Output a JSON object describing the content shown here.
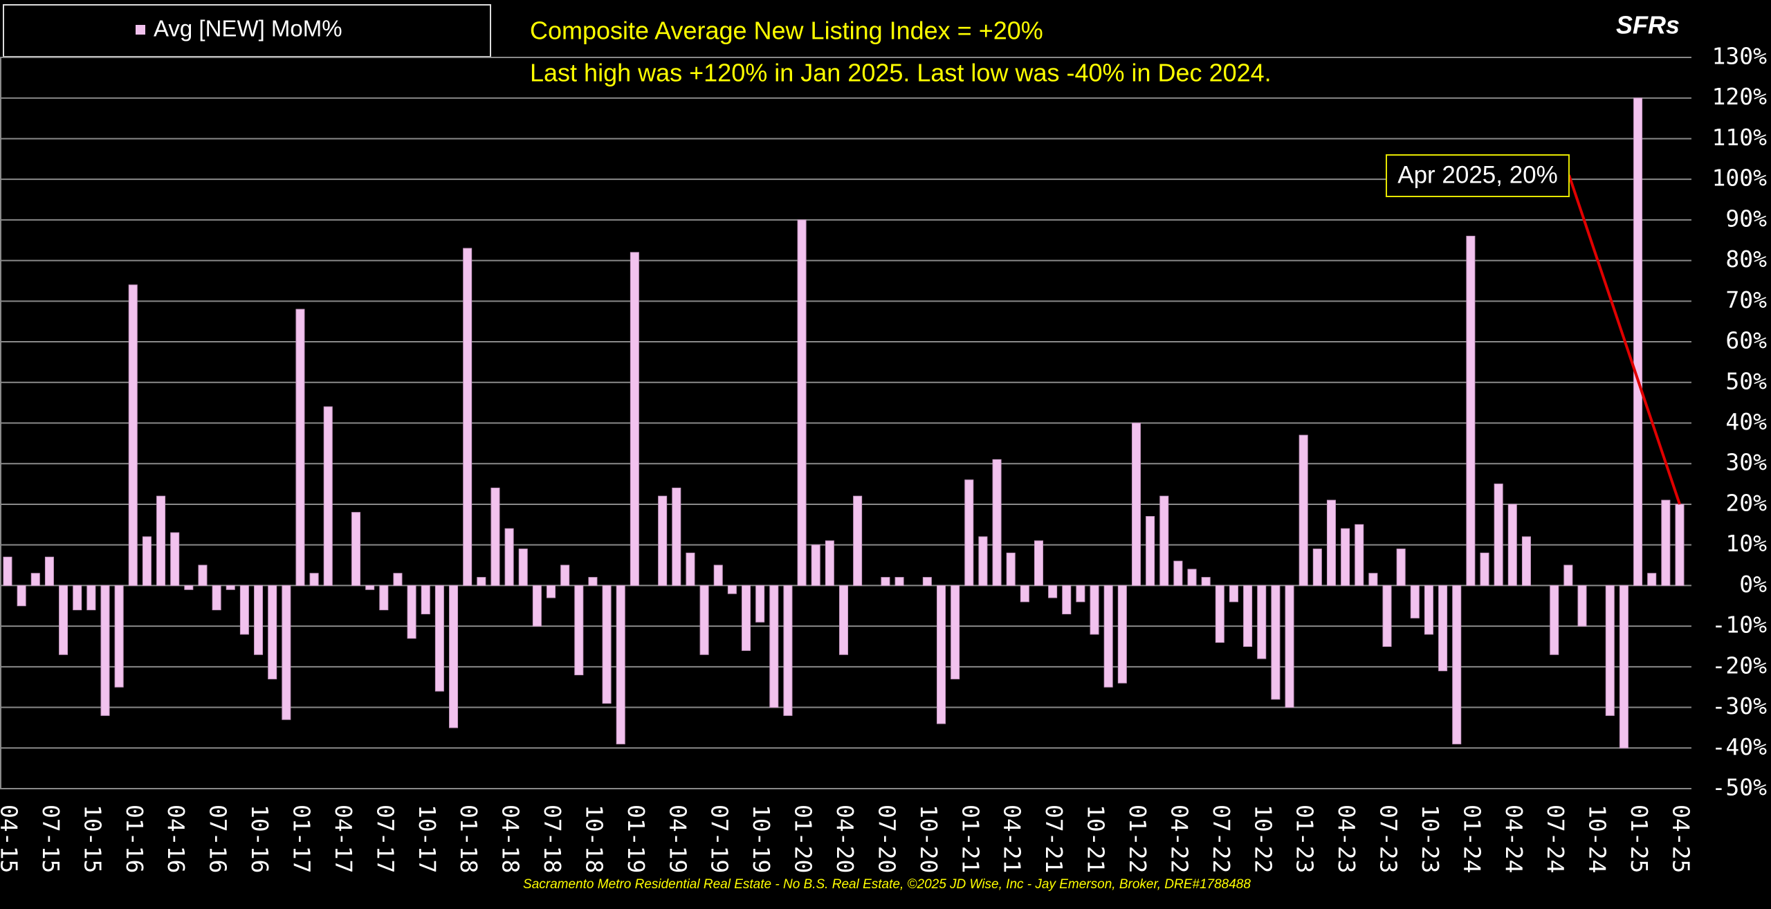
{
  "chart_data": {
    "type": "bar",
    "title": "Composite Average New Listing Index = +20%",
    "subtitle": "Last high was +120% in Jan 2025. Last low was -40% in Dec 2024.",
    "corner_label": "SFRs",
    "source": "Sacramento Metro Residential Real Estate - No B.S. Real Estate, ©2025 JD Wise, Inc - Jay Emerson, Broker, DRE#1788488",
    "annotation": "Apr 2025, 20%",
    "legend": "top-left",
    "grid": true,
    "categories": [
      "04-15",
      null,
      null,
      "07-15",
      null,
      null,
      "10-15",
      null,
      null,
      "01-16",
      null,
      null,
      "04-16",
      null,
      null,
      "07-16",
      null,
      null,
      "10-16",
      null,
      null,
      "01-17",
      null,
      null,
      "04-17",
      null,
      null,
      "07-17",
      null,
      null,
      "10-17",
      null,
      null,
      "01-18",
      null,
      null,
      "04-18",
      null,
      null,
      "07-18",
      null,
      null,
      "10-18",
      null,
      null,
      "01-19",
      null,
      null,
      "04-19",
      null,
      null,
      "07-19",
      null,
      null,
      "10-19",
      null,
      null,
      "01-20",
      null,
      null,
      "04-20",
      null,
      null,
      "07-20",
      null,
      null,
      "10-20",
      null,
      null,
      "01-21",
      null,
      null,
      "04-21",
      null,
      null,
      "07-21",
      null,
      null,
      "10-21",
      null,
      null,
      "01-22",
      null,
      null,
      "04-22",
      null,
      null,
      "07-22",
      null,
      null,
      "10-22",
      null,
      null,
      "01-23",
      null,
      null,
      "04-23",
      null,
      null,
      "07-23",
      null,
      null,
      "10-23",
      null,
      null,
      "01-24",
      null,
      null,
      "04-24",
      null,
      null,
      "07-24",
      null,
      null,
      "10-24",
      null,
      null,
      "01-25",
      null,
      null,
      "04-25"
    ],
    "series": [
      {
        "name": "Avg [NEW] MoM%",
        "color": "#f2c2ee",
        "values": [
          7,
          -5,
          3,
          7,
          -17,
          -6,
          -6,
          -32,
          -25,
          74,
          12,
          22,
          13,
          -1,
          5,
          -6,
          -1,
          -12,
          -17,
          -23,
          -33,
          68,
          3,
          44,
          0,
          18,
          -1,
          -6,
          3,
          -13,
          -7,
          -26,
          -35,
          83,
          2,
          24,
          14,
          9,
          -10,
          -3,
          5,
          -22,
          2,
          -29,
          -39,
          82,
          0,
          22,
          24,
          8,
          -17,
          5,
          -2,
          -16,
          -9,
          -30,
          -32,
          90,
          10,
          11,
          -17,
          22,
          0,
          2,
          2,
          0,
          2,
          -34,
          -23,
          26,
          12,
          31,
          8,
          -4,
          11,
          -3,
          -7,
          -4,
          -12,
          -25,
          -24,
          40,
          17,
          22,
          6,
          4,
          2,
          -14,
          -4,
          -15,
          -18,
          -28,
          -30,
          37,
          9,
          21,
          14,
          15,
          3,
          -15,
          9,
          -8,
          -12,
          -21,
          -39,
          86,
          8,
          25,
          20,
          12,
          0,
          -17,
          5,
          -10,
          0,
          -32,
          -40,
          120,
          3,
          21,
          20
        ]
      }
    ],
    "ylim": [
      -50,
      130
    ],
    "yticks": [
      {
        "value": -50,
        "label": "-50%"
      },
      {
        "value": -40,
        "label": "-40%"
      },
      {
        "value": -30,
        "label": "-30%"
      },
      {
        "value": -20,
        "label": "-20%"
      },
      {
        "value": -10,
        "label": "-10%"
      },
      {
        "value": 0,
        "label": "0%"
      },
      {
        "value": 10,
        "label": "10%"
      },
      {
        "value": 20,
        "label": "20%"
      },
      {
        "value": 30,
        "label": "30%"
      },
      {
        "value": 40,
        "label": "40%"
      },
      {
        "value": 50,
        "label": "50%"
      },
      {
        "value": 60,
        "label": "60%"
      },
      {
        "value": 70,
        "label": "70%"
      },
      {
        "value": 80,
        "label": "80%"
      },
      {
        "value": 90,
        "label": "90%"
      },
      {
        "value": 100,
        "label": "100%"
      },
      {
        "value": 110,
        "label": "110%"
      },
      {
        "value": 120,
        "label": "120%"
      },
      {
        "value": 130,
        "label": "130%"
      }
    ]
  }
}
